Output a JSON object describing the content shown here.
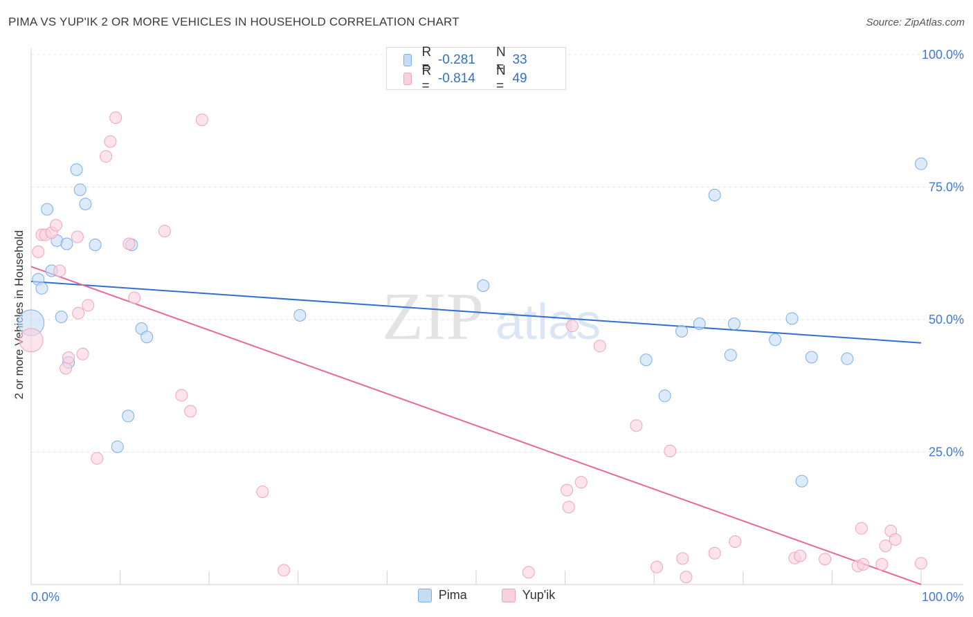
{
  "chart_data": {
    "type": "scatter",
    "title": "PIMA VS YUP'IK 2 OR MORE VEHICLES IN HOUSEHOLD CORRELATION CHART",
    "source": "Source: ZipAtlas.com",
    "xlabel": "",
    "ylabel": "2 or more Vehicles in Household",
    "xlim": [
      0,
      100
    ],
    "ylim": [
      0,
      100
    ],
    "x_tick_labels": [
      "0.0%",
      "100.0%"
    ],
    "y_tick_labels": [
      "25.0%",
      "50.0%",
      "75.0%",
      "100.0%"
    ],
    "y_ticks": [
      25,
      50,
      75,
      100
    ],
    "grid": true,
    "legend_position": "top-center",
    "watermark": "ZIPatlas",
    "series": [
      {
        "name": "Pima",
        "color": "#7aaee8",
        "fill": "#c5dcf7",
        "line_color": "#2f6fd1",
        "r_label": "R =",
        "r_value": "-0.281",
        "n_label": "N =",
        "n_value": "33",
        "trend": [
          [
            0,
            57.2
          ],
          [
            100,
            45.6
          ]
        ],
        "points": [
          [
            0,
            49.4,
            2.2
          ],
          [
            0.8,
            57.6,
            1
          ],
          [
            1.2,
            55.9,
            1
          ],
          [
            1.8,
            70.8,
            1
          ],
          [
            2.3,
            59.2,
            1
          ],
          [
            2.9,
            64.9,
            1
          ],
          [
            3.4,
            50.5,
            1
          ],
          [
            4.2,
            41.9,
            1
          ],
          [
            4.0,
            64.3,
            1
          ],
          [
            5.1,
            78.3,
            1
          ],
          [
            5.5,
            74.5,
            1
          ],
          [
            6.1,
            71.8,
            1
          ],
          [
            7.2,
            64.1,
            1
          ],
          [
            9.7,
            26.0,
            1
          ],
          [
            10.9,
            31.8,
            1
          ],
          [
            11.3,
            64.1,
            1
          ],
          [
            12.4,
            48.3,
            1
          ],
          [
            13.0,
            46.7,
            1
          ],
          [
            30.2,
            50.8,
            1
          ],
          [
            50.8,
            56.4,
            1
          ],
          [
            69.1,
            42.4,
            1
          ],
          [
            71.2,
            35.6,
            1
          ],
          [
            73.1,
            47.8,
            1
          ],
          [
            75.1,
            49.2,
            1
          ],
          [
            76.8,
            73.5,
            1
          ],
          [
            78.6,
            43.3,
            1
          ],
          [
            79.0,
            49.2,
            1
          ],
          [
            83.6,
            46.2,
            1
          ],
          [
            85.5,
            50.2,
            1
          ],
          [
            86.6,
            19.5,
            1
          ],
          [
            87.7,
            42.9,
            1
          ],
          [
            91.7,
            42.6,
            1
          ],
          [
            100,
            79.4,
            1
          ]
        ]
      },
      {
        "name": "Yup'ik",
        "color": "#f0a3bc",
        "fill": "#fbd0de",
        "line_color": "#e8679a",
        "r_label": "R =",
        "r_value": "-0.814",
        "n_label": "N =",
        "n_value": "49",
        "trend": [
          [
            0,
            60.0
          ],
          [
            100,
            0
          ]
        ],
        "points": [
          [
            0,
            46.1,
            2.0
          ],
          [
            0.8,
            62.8,
            1
          ],
          [
            1.2,
            66.0,
            1
          ],
          [
            1.6,
            66.0,
            1
          ],
          [
            2.3,
            66.4,
            1
          ],
          [
            2.8,
            67.8,
            1
          ],
          [
            3.2,
            59.2,
            1
          ],
          [
            3.9,
            40.8,
            1
          ],
          [
            4.2,
            42.8,
            1
          ],
          [
            5.2,
            65.6,
            1
          ],
          [
            5.3,
            51.2,
            1
          ],
          [
            5.8,
            43.5,
            1
          ],
          [
            6.4,
            52.7,
            1
          ],
          [
            7.4,
            23.8,
            1
          ],
          [
            8.4,
            80.8,
            1
          ],
          [
            8.9,
            83.6,
            1
          ],
          [
            9.5,
            88.1,
            1
          ],
          [
            11.0,
            64.3,
            1
          ],
          [
            11.6,
            54.1,
            1
          ],
          [
            15.0,
            66.7,
            1
          ],
          [
            16.9,
            35.7,
            1
          ],
          [
            17.9,
            32.7,
            1
          ],
          [
            19.2,
            87.7,
            1
          ],
          [
            26.0,
            17.5,
            1
          ],
          [
            28.4,
            2.7,
            1
          ],
          [
            55.9,
            2.3,
            1
          ],
          [
            60.2,
            17.8,
            1
          ],
          [
            60.4,
            14.6,
            1
          ],
          [
            60.8,
            48.8,
            1
          ],
          [
            61.8,
            19.3,
            1
          ],
          [
            63.9,
            45.0,
            1
          ],
          [
            68.0,
            30.0,
            1
          ],
          [
            70.3,
            3.3,
            1
          ],
          [
            71.8,
            25.2,
            1
          ],
          [
            73.2,
            4.9,
            1
          ],
          [
            73.6,
            1.4,
            1
          ],
          [
            76.8,
            5.9,
            1
          ],
          [
            79.1,
            8.1,
            1
          ],
          [
            85.8,
            5.0,
            1
          ],
          [
            86.4,
            5.4,
            1
          ],
          [
            89.2,
            4.8,
            1
          ],
          [
            92.9,
            3.5,
            1
          ],
          [
            93.3,
            10.6,
            1
          ],
          [
            93.5,
            3.8,
            1
          ],
          [
            95.6,
            3.8,
            1
          ],
          [
            96.0,
            7.3,
            1
          ],
          [
            96.6,
            10.1,
            1
          ],
          [
            97.1,
            8.5,
            1
          ],
          [
            100,
            4.0,
            1
          ]
        ]
      }
    ]
  }
}
